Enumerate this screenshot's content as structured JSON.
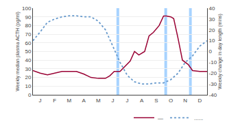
{
  "chart_data": {
    "type": "line",
    "xlim": [
      0,
      12
    ],
    "xticks": [
      {
        "value": 0.5,
        "label": "J"
      },
      {
        "value": 1.5,
        "label": "F"
      },
      {
        "value": 2.5,
        "label": "M"
      },
      {
        "value": 3.5,
        "label": "A"
      },
      {
        "value": 4.5,
        "label": "M"
      },
      {
        "value": 5.5,
        "label": "J"
      },
      {
        "value": 6.5,
        "label": "J"
      },
      {
        "value": 7.5,
        "label": "A"
      },
      {
        "value": 8.5,
        "label": "S"
      },
      {
        "value": 9.5,
        "label": "O"
      },
      {
        "value": 10.5,
        "label": "N"
      },
      {
        "value": 11.5,
        "label": "D"
      }
    ],
    "ylabel": "Weekly median plasma ACTH (pg/ml)",
    "y2label": "Weekly change in day length (mins)",
    "ylim": [
      0,
      100
    ],
    "yticks": [
      0,
      10,
      20,
      30,
      40,
      50,
      60,
      70,
      80,
      90,
      100
    ],
    "y2lim": [
      -40,
      40
    ],
    "y2ticks": [
      -40,
      -30,
      -20,
      -10,
      0,
      10,
      20,
      30,
      40
    ],
    "grid": "y",
    "legend": "lower right",
    "series": [
      {
        "name": "—",
        "color": "#990033",
        "line_style": "solid",
        "x": [
          0,
          0.5,
          1,
          1.5,
          2,
          2.5,
          3,
          3.5,
          4,
          4.5,
          5,
          5.3,
          5.6,
          6,
          6.3,
          6.7,
          7,
          7.3,
          7.7,
          8,
          8.3,
          8.7,
          9,
          9.2,
          9.5,
          9.7,
          10,
          10.3,
          10.7,
          11,
          11.5,
          12
        ],
        "values": [
          28,
          25,
          23,
          25,
          27,
          27,
          27,
          24,
          20,
          19,
          19,
          22,
          27,
          27,
          32,
          39,
          50,
          46,
          50,
          68,
          72,
          80,
          91,
          91,
          90,
          88,
          65,
          40,
          35,
          28,
          27,
          27
        ]
      },
      {
        "name": "......",
        "color": "#6699cc",
        "line_style": "dotted",
        "axis": "y2",
        "x": [
          0,
          0.5,
          1,
          1.5,
          2,
          2.5,
          3,
          3.5,
          4,
          4.5,
          5,
          5.5,
          6,
          6.5,
          7,
          7.5,
          8,
          8.5,
          9,
          9.5,
          10,
          10.5,
          11,
          11.5,
          12
        ],
        "values": [
          10,
          18,
          27,
          30,
          32,
          33,
          33,
          32,
          32,
          28,
          20,
          5,
          -10,
          -22,
          -28,
          -30,
          -30,
          -29,
          -29,
          -26,
          -20,
          -10,
          -4,
          5,
          10
        ]
      }
    ],
    "vlines": {
      "x": [
        5.85,
        9.15,
        10.85
      ],
      "color": "#99ccff"
    }
  }
}
